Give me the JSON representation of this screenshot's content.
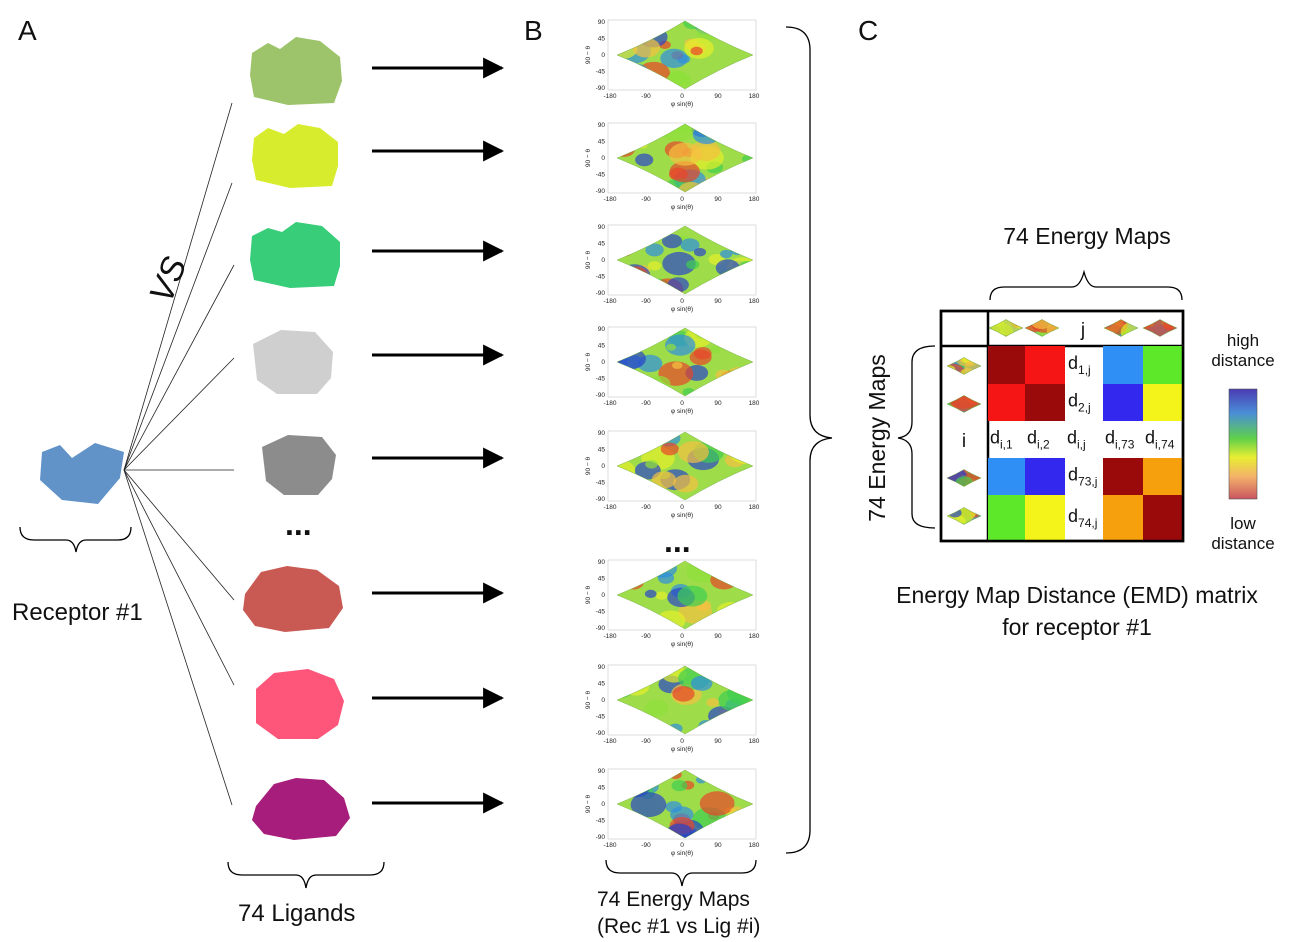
{
  "panels": {
    "a": "A",
    "b": "B",
    "c": "C"
  },
  "panel_a": {
    "vs_label": "VS",
    "receptor_label": "Receptor #1",
    "receptor_color": "#6193c9",
    "ellipsis": "...",
    "ligands_label": "74 Ligands",
    "ligand_colors": [
      "#9dc46a",
      "#d8ec2e",
      "#38cd79",
      "#cfcfcf",
      "#8c8c8c",
      "#c95a53",
      "#fe557a",
      "#a71d7c"
    ]
  },
  "panel_b": {
    "ellipsis": "...",
    "caption_line1": "74 Energy Maps",
    "caption_line2": "(Rec #1 vs Lig #i)",
    "axis": {
      "y_label": "90 − θ",
      "x_label": "φ sin(θ)",
      "y_ticks": [
        "90",
        "45",
        "0",
        "-45",
        "-90"
      ],
      "x_ticks": [
        "-180",
        "-90",
        "0",
        "90",
        "180"
      ]
    }
  },
  "panel_c": {
    "top_label": "74 Energy Maps",
    "left_label": "74 Energy Maps",
    "header_j": "j",
    "row_i": "i",
    "rows": [
      [
        "#9a0a0a",
        "#f51515",
        "d1,j",
        "#2f8ff5",
        "#5ee82a"
      ],
      [
        "#f51515",
        "#9a0a0a",
        "d2,j",
        "#3328ee",
        "#f4f41b"
      ],
      [
        "di,1",
        "di,2",
        "di,j",
        "di,73",
        "di,74"
      ],
      [
        "#2f8ff5",
        "#3328ee",
        "d73,j",
        "#9a0a0a",
        "#f7a00e"
      ],
      [
        "#5ee82a",
        "#f4f41b",
        "d74,j",
        "#f7a00e",
        "#9a0a0a"
      ]
    ],
    "legend_high": "high\ndistance",
    "legend_low": "low\ndistance",
    "caption_line1": "Energy Map Distance (EMD) matrix",
    "caption_line2": "for receptor #1"
  }
}
